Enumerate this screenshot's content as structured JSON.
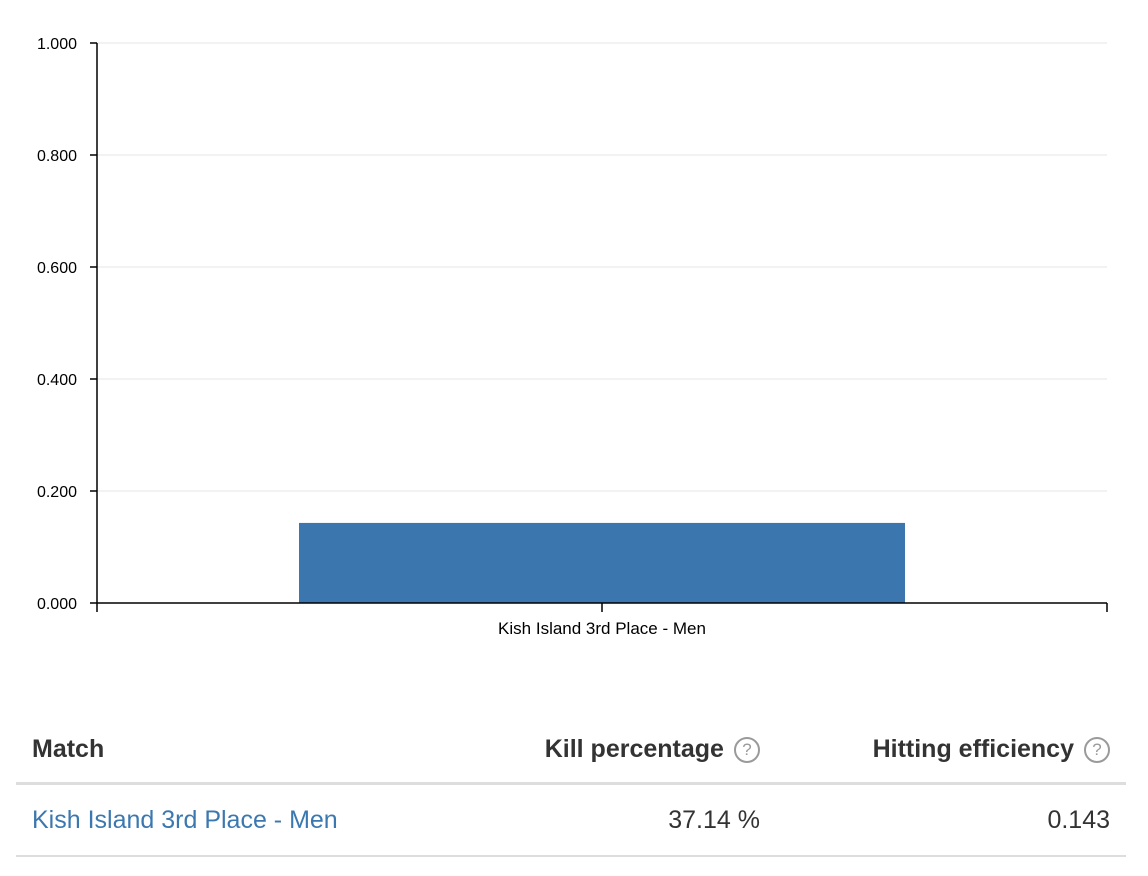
{
  "chart_data": {
    "type": "bar",
    "categories": [
      "Kish Island 3rd Place - Men"
    ],
    "values": [
      0.143
    ],
    "ylim": [
      0,
      1
    ],
    "yticks": [
      "0.000",
      "0.200",
      "0.400",
      "0.600",
      "0.800",
      "1.000"
    ],
    "grid": true,
    "legend": "none",
    "bar_color": "#3b76ae"
  },
  "table": {
    "headers": {
      "match": "Match",
      "kill_percentage": "Kill percentage",
      "hitting_efficiency": "Hitting efficiency"
    },
    "help_glyph": "?",
    "rows": [
      {
        "match": "Kish Island 3rd Place - Men",
        "kill_percentage": "37.14 %",
        "hitting_efficiency": "0.143"
      }
    ]
  },
  "colors": {
    "link": "#3c78b0",
    "text": "#333333",
    "grid": "#e6e6e6",
    "rule": "#dddddd"
  }
}
